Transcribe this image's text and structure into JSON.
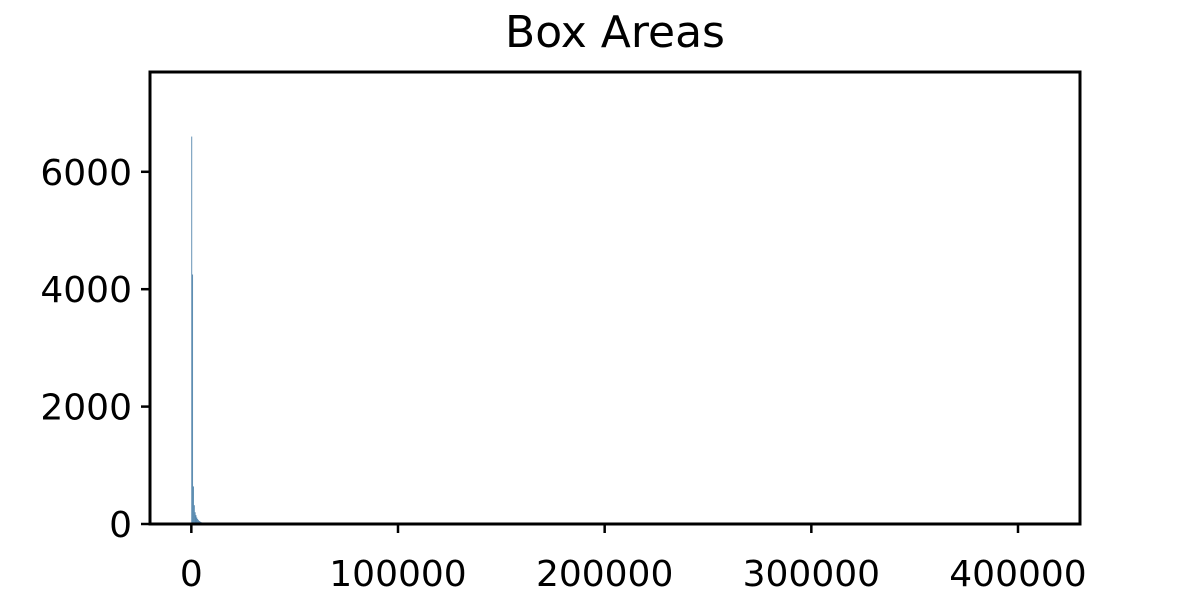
{
  "chart_data": {
    "type": "bar",
    "title": "Box Areas",
    "xlabel": "",
    "ylabel": "",
    "xlim": [
      -20000,
      430000
    ],
    "ylim": [
      0,
      7700
    ],
    "x_ticks": [
      0,
      100000,
      200000,
      300000,
      400000
    ],
    "x_tick_labels": [
      "0",
      "100000",
      "200000",
      "300000",
      "400000"
    ],
    "y_ticks": [
      0,
      2000,
      4000,
      6000
    ],
    "y_tick_labels": [
      "0",
      "2000",
      "4000",
      "6000"
    ],
    "bin_width": 410,
    "bins": [
      {
        "x": 0,
        "count": 6600
      },
      {
        "x": 410,
        "count": 4250
      },
      {
        "x": 820,
        "count": 640
      },
      {
        "x": 1230,
        "count": 320
      },
      {
        "x": 1640,
        "count": 200
      },
      {
        "x": 2050,
        "count": 150
      },
      {
        "x": 2460,
        "count": 110
      },
      {
        "x": 2870,
        "count": 85
      },
      {
        "x": 3280,
        "count": 65
      },
      {
        "x": 3690,
        "count": 50
      },
      {
        "x": 4100,
        "count": 40
      },
      {
        "x": 4510,
        "count": 32
      },
      {
        "x": 4920,
        "count": 26
      },
      {
        "x": 5330,
        "count": 21
      },
      {
        "x": 5740,
        "count": 17
      },
      {
        "x": 6150,
        "count": 14
      },
      {
        "x": 6560,
        "count": 12
      },
      {
        "x": 6970,
        "count": 10
      },
      {
        "x": 7380,
        "count": 9
      },
      {
        "x": 7790,
        "count": 8
      },
      {
        "x": 8200,
        "count": 7
      },
      {
        "x": 9000,
        "count": 6
      },
      {
        "x": 10000,
        "count": 5
      },
      {
        "x": 11500,
        "count": 4
      },
      {
        "x": 13000,
        "count": 3
      },
      {
        "x": 15000,
        "count": 3
      },
      {
        "x": 17500,
        "count": 2
      },
      {
        "x": 20000,
        "count": 2
      }
    ],
    "bar_color": "#4a7fa8",
    "grid": false
  }
}
